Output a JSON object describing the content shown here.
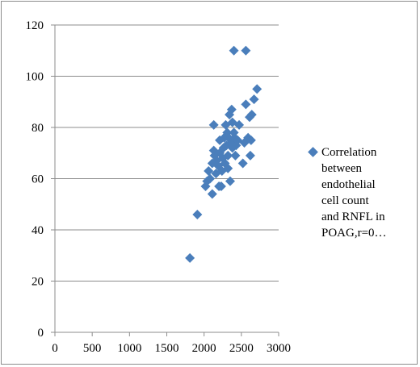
{
  "chart_data": {
    "type": "scatter",
    "title": "",
    "xlabel": "",
    "ylabel": "",
    "xlim": [
      0,
      3000
    ],
    "ylim": [
      0,
      120
    ],
    "x_ticks": [
      0,
      500,
      1000,
      1500,
      2000,
      2500,
      3000
    ],
    "y_ticks": [
      0,
      20,
      40,
      60,
      80,
      100,
      120
    ],
    "grid": "horizontal",
    "legend_position": "right",
    "marker_color": "#4a7ebb",
    "series": [
      {
        "name": "Correlation between endothelial cell count and RNFL in POAG,r=0…",
        "points": [
          [
            1810,
            29
          ],
          [
            1910,
            46
          ],
          [
            2020,
            57
          ],
          [
            2040,
            59
          ],
          [
            2060,
            63
          ],
          [
            2080,
            60
          ],
          [
            2110,
            54
          ],
          [
            2110,
            66
          ],
          [
            2130,
            71
          ],
          [
            2140,
            69
          ],
          [
            2130,
            81
          ],
          [
            2160,
            62
          ],
          [
            2170,
            67
          ],
          [
            2190,
            65
          ],
          [
            2200,
            57
          ],
          [
            2210,
            70
          ],
          [
            2210,
            75
          ],
          [
            2230,
            57
          ],
          [
            2240,
            63
          ],
          [
            2250,
            68
          ],
          [
            2260,
            72
          ],
          [
            2270,
            76
          ],
          [
            2280,
            66
          ],
          [
            2290,
            81
          ],
          [
            2300,
            73
          ],
          [
            2310,
            78
          ],
          [
            2320,
            64
          ],
          [
            2320,
            69
          ],
          [
            2330,
            76
          ],
          [
            2340,
            85
          ],
          [
            2350,
            59
          ],
          [
            2360,
            74
          ],
          [
            2370,
            87
          ],
          [
            2380,
            82
          ],
          [
            2380,
            72
          ],
          [
            2400,
            110
          ],
          [
            2400,
            78
          ],
          [
            2410,
            76
          ],
          [
            2420,
            69
          ],
          [
            2430,
            73
          ],
          [
            2450,
            75
          ],
          [
            2470,
            81
          ],
          [
            2520,
            66
          ],
          [
            2540,
            74
          ],
          [
            2560,
            110
          ],
          [
            2560,
            89
          ],
          [
            2590,
            76
          ],
          [
            2610,
            84
          ],
          [
            2620,
            69
          ],
          [
            2630,
            75
          ],
          [
            2640,
            85
          ],
          [
            2670,
            91
          ],
          [
            2710,
            95
          ]
        ]
      }
    ]
  },
  "legend": {
    "text": "Correlation\nbetween\nendothelial\ncell count\nand RNFL in\nPOAG,r=0…"
  }
}
